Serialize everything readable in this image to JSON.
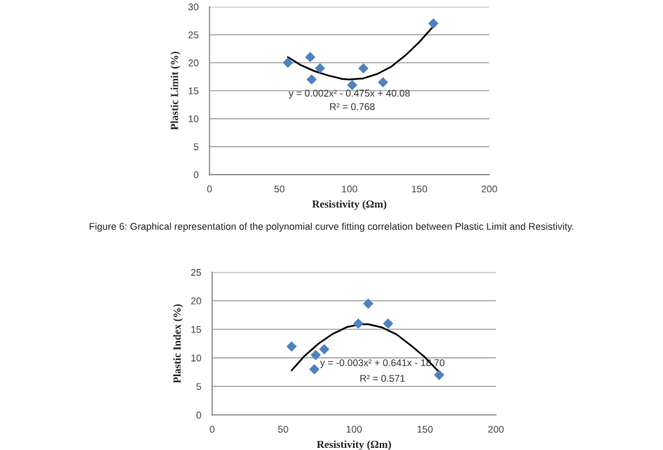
{
  "chart_data": [
    {
      "type": "scatter",
      "xlabel": "Resistivity (Ωm)",
      "ylabel": "Plastic Limit (%)",
      "xlim": [
        0,
        200
      ],
      "xticks": [
        0,
        50,
        100,
        150,
        200
      ],
      "ylim": [
        0,
        30
      ],
      "yticks": [
        0,
        5,
        10,
        15,
        20,
        25,
        30
      ],
      "grid": "y",
      "legend": false,
      "series": [
        {
          "color": "#4f81bd",
          "marker": "diamond",
          "x": [
            56,
            72,
            73,
            79,
            102,
            110,
            124,
            160
          ],
          "values": [
            20,
            21,
            17,
            19,
            16,
            19,
            16.5,
            27
          ]
        },
        {
          "type": "line",
          "marker": "none",
          "color": "#000000",
          "x": [
            56,
            65,
            75,
            85,
            95,
            100,
            110,
            120,
            130,
            140,
            150,
            160
          ],
          "values": [
            21,
            19.6,
            18.5,
            17.7,
            17.1,
            17,
            17.2,
            18,
            19.3,
            21.3,
            23.7,
            26.5
          ]
        }
      ],
      "annotations": [
        "y = 0.002x² - 0.475x + 40.08",
        "R² = 0.768",
        "Figure 6: Graphical representation of the polynomial curve fitting correlation between Plastic Limit and Resistivity."
      ]
    },
    {
      "type": "scatter",
      "xlabel": "Resistivity (Ωm)",
      "ylabel": "Plastic Index (%)",
      "xlim": [
        0,
        200
      ],
      "xticks": [
        0,
        50,
        100,
        150,
        200
      ],
      "ylim": [
        0,
        25
      ],
      "yticks": [
        0,
        5,
        10,
        15,
        20,
        25
      ],
      "grid": "y",
      "legend": false,
      "series": [
        {
          "color": "#4f81bd",
          "marker": "diamond",
          "x": [
            56,
            72,
            73,
            79,
            103,
            110,
            124,
            160
          ],
          "values": [
            12,
            8,
            10.5,
            11.5,
            16,
            19.5,
            16,
            7
          ]
        },
        {
          "type": "line",
          "marker": "none",
          "color": "#000000",
          "x": [
            56,
            65,
            75,
            85,
            95,
            105,
            110,
            120,
            130,
            140,
            150,
            160
          ],
          "values": [
            7.8,
            10.3,
            12.5,
            14.2,
            15.4,
            15.9,
            15.9,
            15.3,
            14.1,
            12.2,
            10.1,
            7.5
          ]
        }
      ],
      "annotations": [
        "y = -0.003x² + 0.641x - 18.70",
        "R² = 0.571"
      ]
    }
  ]
}
